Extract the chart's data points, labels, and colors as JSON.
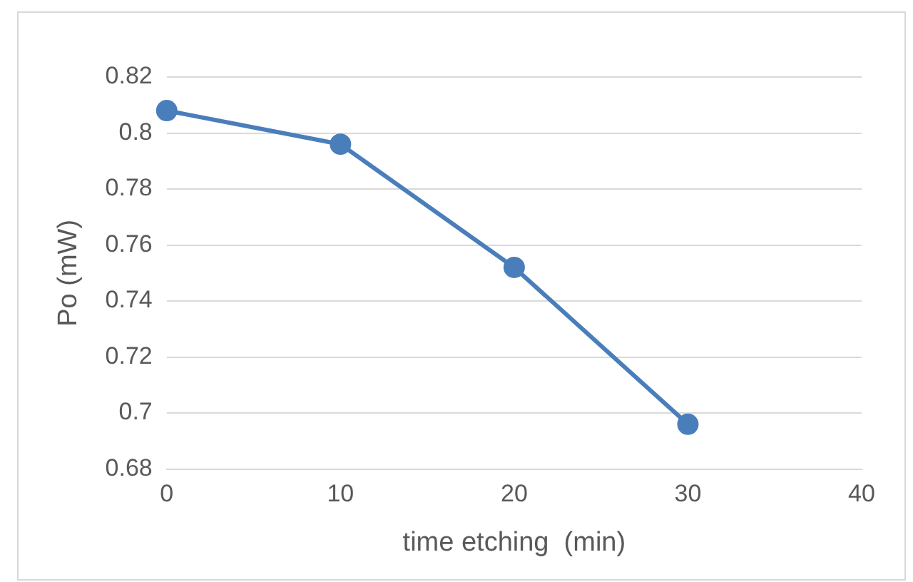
{
  "chart_data": {
    "type": "line",
    "xlabel": "time etching  (min)",
    "ylabel": "Po (mW)",
    "x": [
      0,
      10,
      20,
      30
    ],
    "series": [
      {
        "color": "#4a7ebb",
        "values": [
          0.808,
          0.796,
          0.752,
          0.696
        ]
      }
    ],
    "xlim": [
      0,
      40
    ],
    "xticks": [
      0,
      10,
      20,
      30,
      40
    ],
    "ylim": [
      0.68,
      0.82
    ],
    "yticks": [
      0.68,
      0.7,
      0.72,
      0.74,
      0.76,
      0.78,
      0.8,
      0.82
    ],
    "grid": "y",
    "legend": false,
    "marker": "circle",
    "line_style": "solid"
  }
}
